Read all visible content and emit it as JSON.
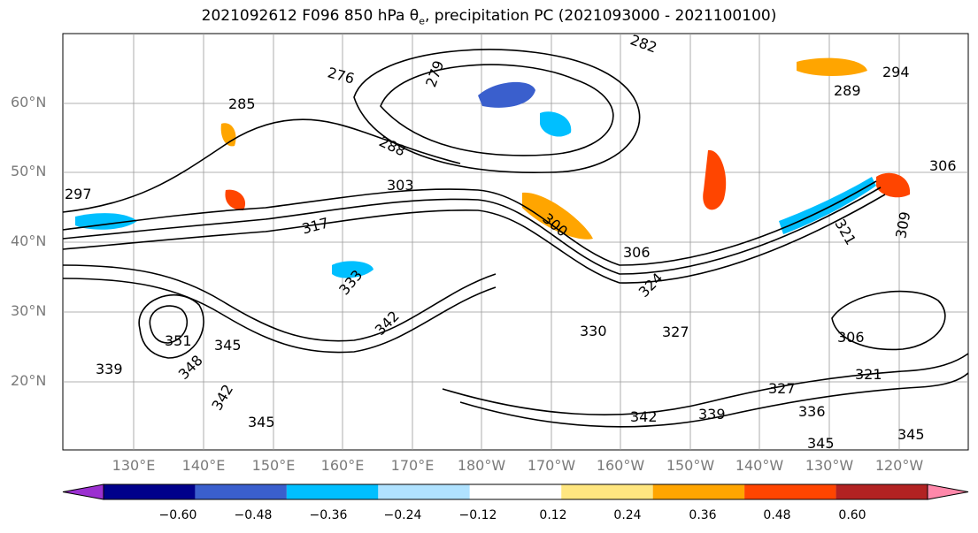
{
  "title_main": "2021092612 F096 850 hPa θ",
  "title_sub": "e",
  "title_rest": ", precipitation PC (2021093000 - 2021100100)",
  "lat_ticks": [
    "60°N",
    "50°N",
    "40°N",
    "30°N",
    "20°N"
  ],
  "lon_ticks": [
    "130°E",
    "140°E",
    "150°E",
    "160°E",
    "170°E",
    "180°W",
    "170°W",
    "160°W",
    "150°W",
    "140°W",
    "130°W",
    "120°W"
  ],
  "contour_labels": [
    "282",
    "276",
    "279",
    "294",
    "289",
    "285",
    "288",
    "303",
    "297",
    "306",
    "317",
    "300",
    "306",
    "321",
    "309",
    "333",
    "324",
    "327",
    "330",
    "306",
    "342",
    "351",
    "345",
    "348",
    "339",
    "342",
    "321",
    "327",
    "336",
    "342",
    "339",
    "345",
    "345",
    "345"
  ],
  "colorbar": {
    "ticks": [
      "−0.60",
      "−0.48",
      "−0.36",
      "−0.24",
      "−0.12",
      "0.12",
      "0.24",
      "0.36",
      "0.48",
      "0.60"
    ],
    "colors": [
      "#9b30d0",
      "#00008b",
      "#3a5fcd",
      "#00bfff",
      "#b0e2ff",
      "#ffffff",
      "#ffe680",
      "#ffa500",
      "#ff4500",
      "#b22222",
      "#ff88aa"
    ]
  }
}
